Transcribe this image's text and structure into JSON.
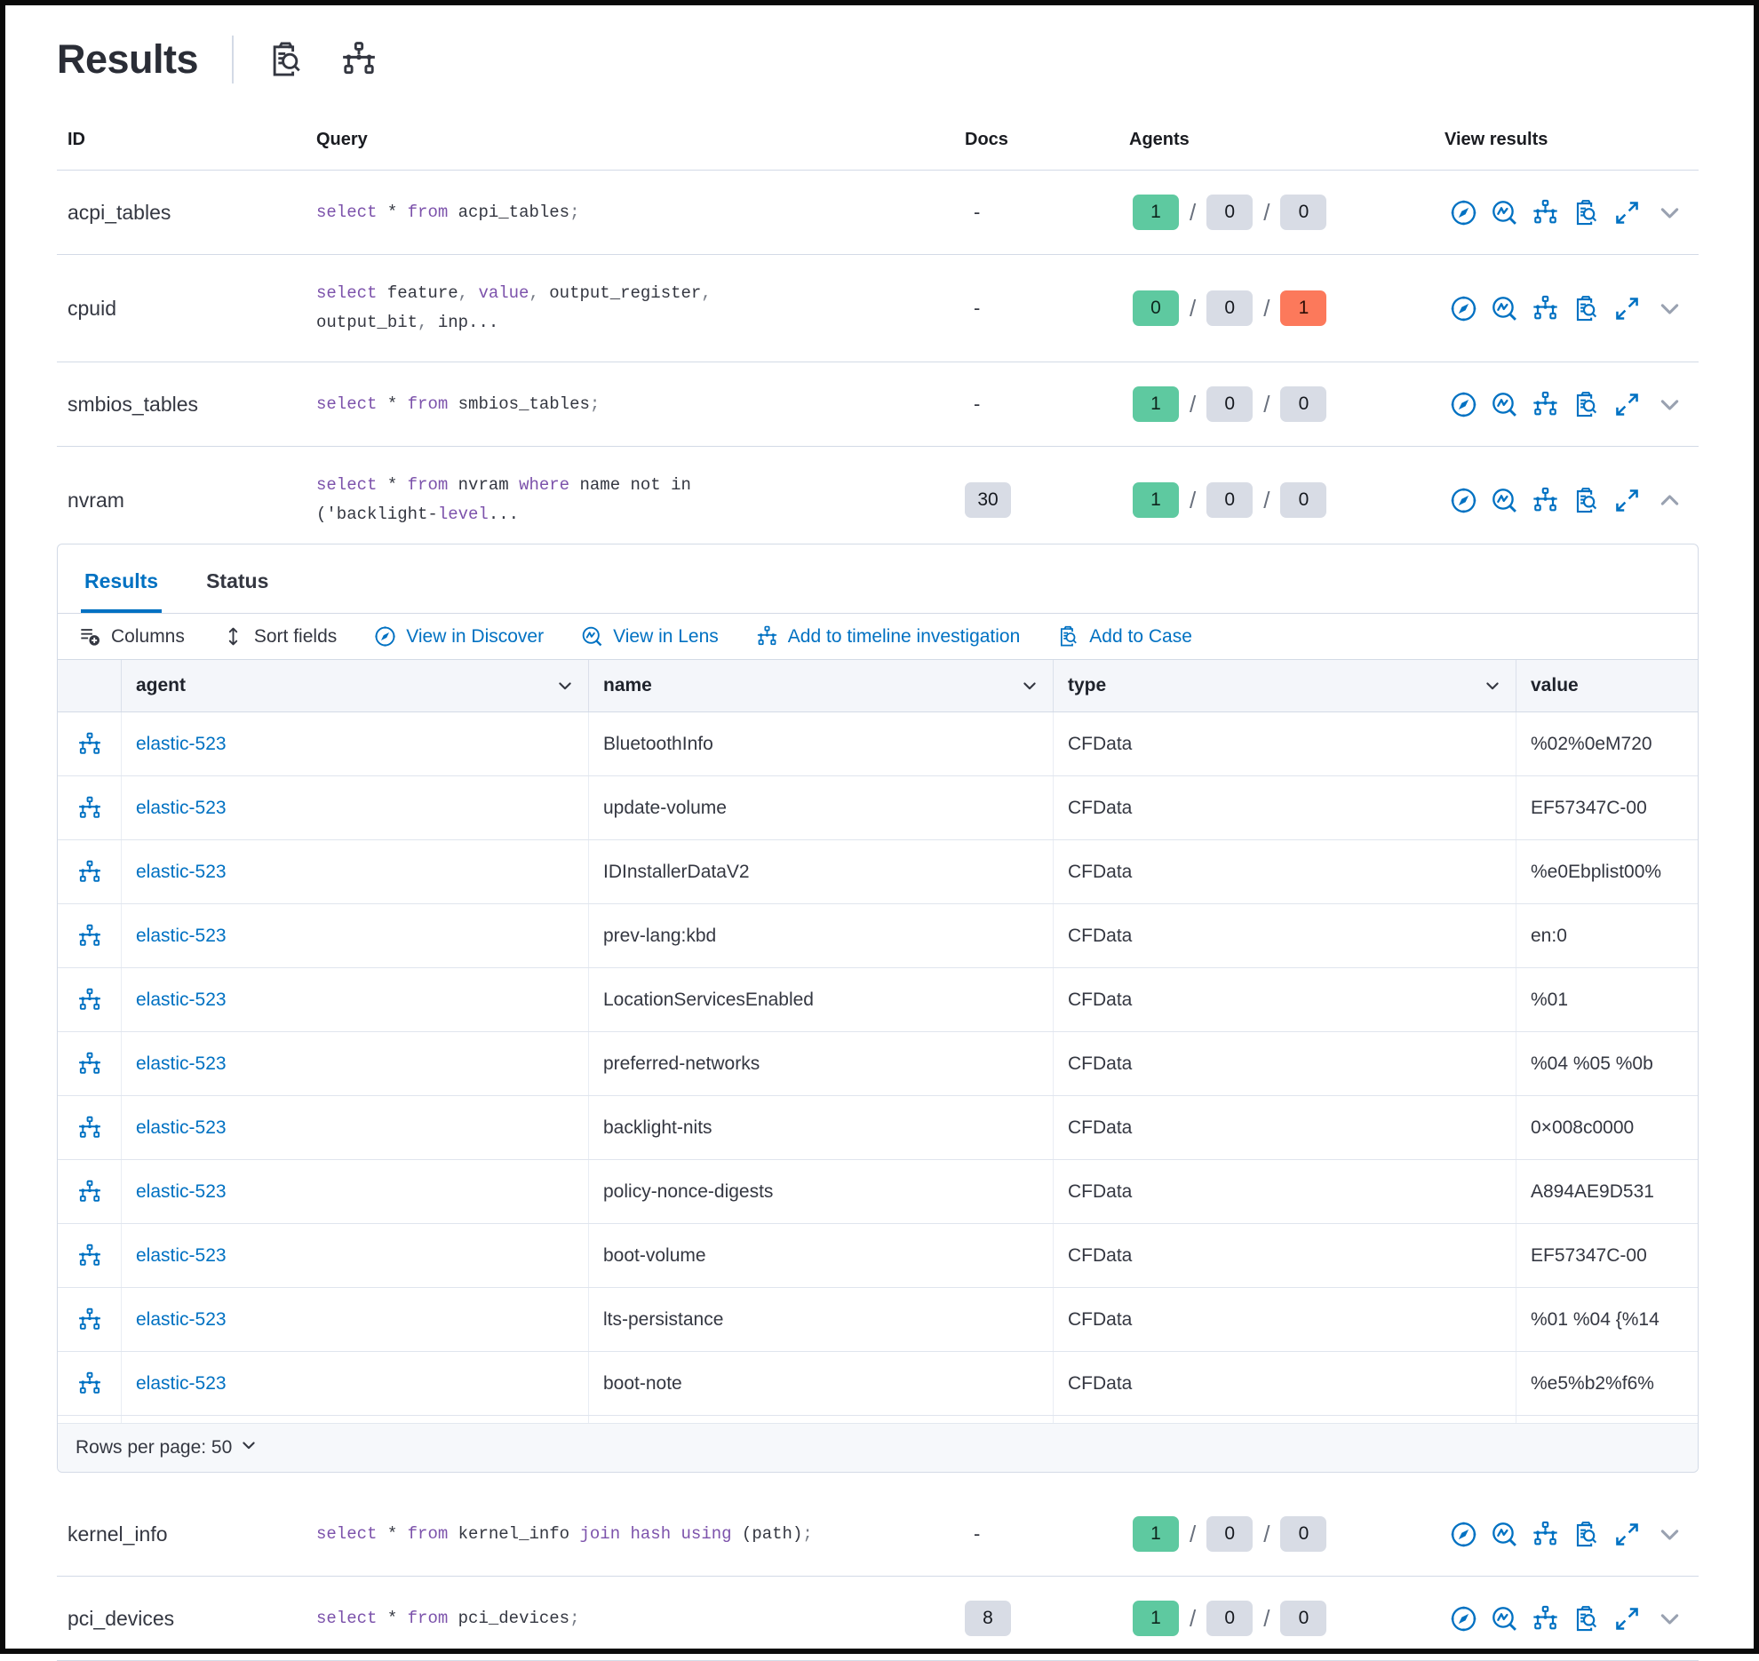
{
  "page": {
    "title": "Results"
  },
  "header": {
    "icons": [
      "live-query-icon",
      "timeline-icon"
    ]
  },
  "colors": {
    "primary": "#0071c2",
    "keyword": "#7c52ab",
    "success_badge": "#5ec9a0",
    "danger_badge": "#fc795b",
    "neutral_badge": "#d8dce5"
  },
  "queries_table": {
    "columns": [
      "ID",
      "Query",
      "Docs",
      "Agents",
      "View results"
    ],
    "view_results_icons": [
      "discover-icon",
      "lens-icon",
      "timeline-icon",
      "cases-icon",
      "expand-icon"
    ],
    "rows_above": [
      {
        "id": "acpi_tables",
        "query_lines": [
          [
            [
              "kw",
              "select"
            ],
            [
              "c",
              " * "
            ],
            [
              "kw",
              "from"
            ],
            [
              "c",
              " acpi_tables"
            ],
            [
              "p",
              ";"
            ]
          ]
        ],
        "docs": "-",
        "docs_badge": false,
        "agents": [
          {
            "v": "1",
            "k": "success"
          },
          {
            "v": "0",
            "k": "default"
          },
          {
            "v": "0",
            "k": "default"
          }
        ],
        "expanded": false
      },
      {
        "id": "cpuid",
        "query_lines": [
          [
            [
              "kw",
              "select"
            ],
            [
              "c",
              " feature"
            ],
            [
              "p",
              ","
            ],
            [
              "c",
              " "
            ],
            [
              "kw",
              "value"
            ],
            [
              "p",
              ","
            ],
            [
              "c",
              " output_register"
            ],
            [
              "p",
              ","
            ]
          ],
          [
            [
              "c",
              "output_bit"
            ],
            [
              "p",
              ","
            ],
            [
              "c",
              " inp..."
            ]
          ]
        ],
        "docs": "-",
        "docs_badge": false,
        "agents": [
          {
            "v": "0",
            "k": "success"
          },
          {
            "v": "0",
            "k": "default"
          },
          {
            "v": "1",
            "k": "danger"
          }
        ],
        "expanded": false
      },
      {
        "id": "smbios_tables",
        "query_lines": [
          [
            [
              "kw",
              "select"
            ],
            [
              "c",
              " * "
            ],
            [
              "kw",
              "from"
            ],
            [
              "c",
              " smbios_tables"
            ],
            [
              "p",
              ";"
            ]
          ]
        ],
        "docs": "-",
        "docs_badge": false,
        "agents": [
          {
            "v": "1",
            "k": "success"
          },
          {
            "v": "0",
            "k": "default"
          },
          {
            "v": "0",
            "k": "default"
          }
        ],
        "expanded": false
      },
      {
        "id": "nvram",
        "query_lines": [
          [
            [
              "kw",
              "select"
            ],
            [
              "c",
              " * "
            ],
            [
              "kw",
              "from"
            ],
            [
              "c",
              " nvram "
            ],
            [
              "kw",
              "where"
            ],
            [
              "c",
              " name not in"
            ]
          ],
          [
            [
              "c",
              "('backlight-"
            ],
            [
              "kw",
              "level"
            ],
            [
              "c",
              "..."
            ]
          ]
        ],
        "docs": "30",
        "docs_badge": true,
        "agents": [
          {
            "v": "1",
            "k": "success"
          },
          {
            "v": "0",
            "k": "default"
          },
          {
            "v": "0",
            "k": "default"
          }
        ],
        "expanded": true
      }
    ],
    "rows_below": [
      {
        "id": "kernel_info",
        "query_lines": [
          [
            [
              "kw",
              "select"
            ],
            [
              "c",
              " * "
            ],
            [
              "kw",
              "from"
            ],
            [
              "c",
              " kernel_info "
            ],
            [
              "kw",
              "join"
            ],
            [
              "c",
              " "
            ],
            [
              "kw",
              "hash"
            ],
            [
              "c",
              " "
            ],
            [
              "kw",
              "using"
            ],
            [
              "c",
              " (path)"
            ],
            [
              "p",
              ";"
            ]
          ]
        ],
        "docs": "-",
        "docs_badge": false,
        "agents": [
          {
            "v": "1",
            "k": "success"
          },
          {
            "v": "0",
            "k": "default"
          },
          {
            "v": "0",
            "k": "default"
          }
        ],
        "expanded": false
      },
      {
        "id": "pci_devices",
        "query_lines": [
          [
            [
              "kw",
              "select"
            ],
            [
              "c",
              " * "
            ],
            [
              "kw",
              "from"
            ],
            [
              "c",
              " pci_devices"
            ],
            [
              "p",
              ";"
            ]
          ]
        ],
        "docs": "8",
        "docs_badge": true,
        "agents": [
          {
            "v": "1",
            "k": "success"
          },
          {
            "v": "0",
            "k": "default"
          },
          {
            "v": "0",
            "k": "default"
          }
        ],
        "expanded": false
      }
    ]
  },
  "expanded_panel": {
    "tabs": [
      {
        "label": "Results",
        "active": true
      },
      {
        "label": "Status",
        "active": false
      }
    ],
    "toolbar": [
      {
        "label": "Columns",
        "icon": "columns-icon",
        "kind": "text"
      },
      {
        "label": "Sort fields",
        "icon": "sort-icon",
        "kind": "text"
      },
      {
        "label": "View in Discover",
        "icon": "discover-icon",
        "kind": "primary"
      },
      {
        "label": "View in Lens",
        "icon": "lens-icon",
        "kind": "primary"
      },
      {
        "label": "Add to timeline investigation",
        "icon": "timeline-icon",
        "kind": "primary"
      },
      {
        "label": "Add to Case",
        "icon": "cases-icon",
        "kind": "primary"
      }
    ],
    "grid": {
      "control_icon": "timeline-icon",
      "columns": [
        {
          "label": "agent",
          "arrow": true
        },
        {
          "label": "name",
          "arrow": true
        },
        {
          "label": "type",
          "arrow": true
        },
        {
          "label": "value",
          "arrow": false
        }
      ],
      "rows": [
        {
          "agent": "elastic-523",
          "name": "BluetoothInfo",
          "type": "CFData",
          "value": "%02%0eM720"
        },
        {
          "agent": "elastic-523",
          "name": "update-volume",
          "type": "CFData",
          "value": "EF57347C-00"
        },
        {
          "agent": "elastic-523",
          "name": "IDInstallerDataV2",
          "type": "CFData",
          "value": "%e0Ebplist00%"
        },
        {
          "agent": "elastic-523",
          "name": "prev-lang:kbd",
          "type": "CFData",
          "value": "en:0"
        },
        {
          "agent": "elastic-523",
          "name": "LocationServicesEnabled",
          "type": "CFData",
          "value": "%01"
        },
        {
          "agent": "elastic-523",
          "name": "preferred-networks",
          "type": "CFData",
          "value": "%04 %05 %0b"
        },
        {
          "agent": "elastic-523",
          "name": "backlight-nits",
          "type": "CFData",
          "value": "0×008c0000"
        },
        {
          "agent": "elastic-523",
          "name": "policy-nonce-digests",
          "type": "CFData",
          "value": "A894AE9D531"
        },
        {
          "agent": "elastic-523",
          "name": "boot-volume",
          "type": "CFData",
          "value": "EF57347C-00"
        },
        {
          "agent": "elastic-523",
          "name": "lts-persistance",
          "type": "CFData",
          "value": "%01 %04 {%14"
        },
        {
          "agent": "elastic-523",
          "name": "boot-note",
          "type": "CFData",
          "value": "%e5%b2%f6%"
        }
      ]
    },
    "footer": {
      "rows_per_page": "Rows per page: 50"
    }
  }
}
